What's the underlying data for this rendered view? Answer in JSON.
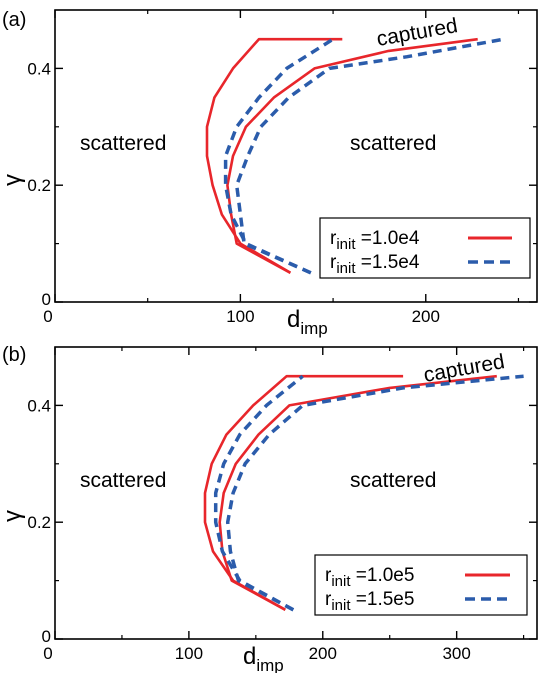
{
  "chart_data": [
    {
      "type": "line",
      "panel_label": "(a)",
      "ylabel": "γ",
      "xlabel_main": "d",
      "xlabel_sub": "imp",
      "xlim": [
        0,
        260
      ],
      "ylim": [
        0,
        0.5
      ],
      "xticks": [
        "0",
        "100",
        "200"
      ],
      "xtick_values": [
        0,
        100,
        200
      ],
      "yticks": [
        "0",
        "0.2",
        "0.4"
      ],
      "ytick_values": [
        0,
        0.2,
        0.4
      ],
      "annotations": {
        "left": "scattered",
        "right": "scattered",
        "top": "captured"
      },
      "series": [
        {
          "legend_main": "r",
          "legend_sub": "init",
          "legend_value": " =1.0e4",
          "color": "#e8262b",
          "dash": "solid",
          "x": [
            127,
            100,
            90,
            85,
            82,
            82,
            86,
            96,
            110,
            155
          ],
          "y": [
            0.05,
            0.1,
            0.15,
            0.2,
            0.25,
            0.3,
            0.35,
            0.4,
            0.45,
            0.45
          ],
          "x2": [
            127,
            98,
            95,
            93,
            96,
            103,
            118,
            140,
            180,
            228
          ],
          "y2": [
            0.05,
            0.1,
            0.15,
            0.2,
            0.25,
            0.3,
            0.35,
            0.4,
            0.43,
            0.45
          ]
        },
        {
          "legend_main": "r",
          "legend_sub": "init",
          "legend_value": " =1.5e4",
          "color": "#2b5cab",
          "dash": "dashed",
          "x": [
            138,
            103,
            95,
            92,
            92,
            98,
            110,
            125,
            150
          ],
          "y": [
            0.05,
            0.1,
            0.15,
            0.2,
            0.25,
            0.3,
            0.35,
            0.4,
            0.45
          ],
          "x2": [
            138,
            102,
            100,
            98,
            104,
            111,
            126,
            148,
            190,
            242
          ],
          "y2": [
            0.05,
            0.1,
            0.15,
            0.2,
            0.25,
            0.3,
            0.35,
            0.4,
            0.42,
            0.45
          ]
        }
      ]
    },
    {
      "type": "line",
      "panel_label": "(b)",
      "ylabel": "γ",
      "xlabel_main": "d",
      "xlabel_sub": "imp",
      "xlim": [
        0,
        360
      ],
      "ylim": [
        0,
        0.5
      ],
      "xticks": [
        "0",
        "100",
        "200",
        "300"
      ],
      "xtick_values": [
        0,
        100,
        200,
        300
      ],
      "yticks": [
        "0",
        "0.2",
        "0.4"
      ],
      "ytick_values": [
        0,
        0.2,
        0.4
      ],
      "annotations": {
        "left": "scattered",
        "right": "scattered",
        "top": "captured"
      },
      "series": [
        {
          "legend_main": "r",
          "legend_sub": "init",
          "legend_value": " =1.0e5",
          "color": "#e8262b",
          "dash": "solid",
          "x": [
            172,
            133,
            118,
            112,
            112,
            117,
            128,
            148,
            173,
            260
          ],
          "y": [
            0.05,
            0.1,
            0.15,
            0.2,
            0.25,
            0.3,
            0.35,
            0.4,
            0.45,
            0.45
          ],
          "x2": [
            172,
            132,
            125,
            123,
            126,
            135,
            152,
            175,
            250,
            330
          ],
          "y2": [
            0.05,
            0.1,
            0.15,
            0.2,
            0.25,
            0.3,
            0.35,
            0.4,
            0.43,
            0.45
          ]
        },
        {
          "legend_main": "r",
          "legend_sub": "init",
          "legend_value": " =1.5e5",
          "color": "#2b5cab",
          "dash": "dashed",
          "x": [
            178,
            138,
            125,
            120,
            120,
            126,
            138,
            158,
            185
          ],
          "y": [
            0.05,
            0.1,
            0.15,
            0.2,
            0.25,
            0.3,
            0.35,
            0.4,
            0.45
          ],
          "x2": [
            178,
            137,
            131,
            129,
            133,
            142,
            160,
            185,
            260,
            350
          ],
          "y2": [
            0.05,
            0.1,
            0.15,
            0.2,
            0.25,
            0.3,
            0.35,
            0.4,
            0.43,
            0.45
          ]
        }
      ]
    }
  ]
}
